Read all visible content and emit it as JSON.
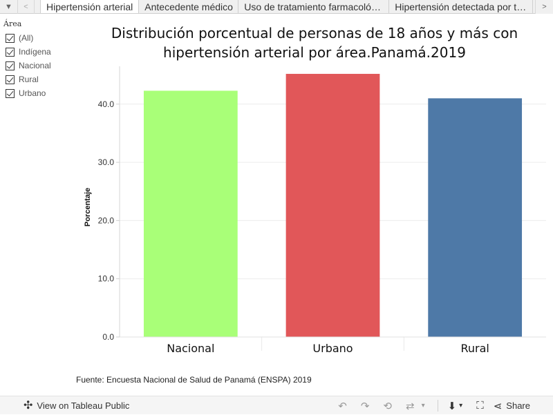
{
  "tabs": {
    "menu_icon": "caret-down-icon",
    "items": [
      {
        "label": "Hipertensión arterial",
        "active": true
      },
      {
        "label": "Antecedente médico"
      },
      {
        "label": "Uso de tratamiento farmacológico"
      },
      {
        "label": "Hipertensión detectada por test"
      }
    ]
  },
  "filter": {
    "title": "Área",
    "items": [
      {
        "label": "(All)",
        "checked": true
      },
      {
        "label": "Indígena",
        "checked": true
      },
      {
        "label": "Nacional",
        "checked": true
      },
      {
        "label": "Rural",
        "checked": true
      },
      {
        "label": "Urbano",
        "checked": true
      }
    ]
  },
  "chart_data": {
    "type": "bar",
    "title": "Distribución porcentual de personas de 18 años y más con hipertensión arterial  por área.Panamá.2019",
    "categories": [
      "Nacional",
      "Urbano",
      "Rural"
    ],
    "values": [
      42.3,
      45.2,
      41.0
    ],
    "colors": [
      "#a9ff78",
      "#e15759",
      "#4e79a7"
    ],
    "ylabel": "Porcentaje",
    "xlabel": "",
    "ylim": [
      0,
      46.5
    ],
    "yticks": [
      "0.0",
      "10.0",
      "20.0",
      "30.0",
      "40.0"
    ],
    "grid": true,
    "source": "Fuente: Encuesta Nacional de Salud de Panamá (ENSPA) 2019"
  },
  "toolbar": {
    "view_label": "View on Tableau Public",
    "share_label": "Share"
  }
}
